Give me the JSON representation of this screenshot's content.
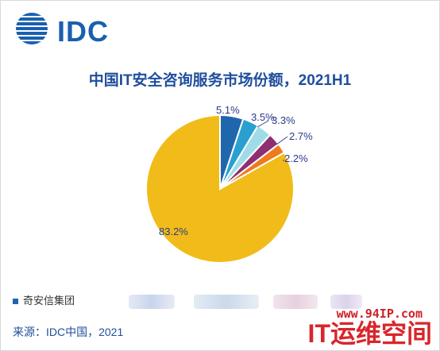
{
  "logo": {
    "text": "IDC"
  },
  "chart_data": {
    "type": "pie",
    "title": "中国IT安全咨询服务市场份额，2021H1",
    "slices": [
      {
        "label": "5.1%",
        "value": 5.1,
        "color": "#2066ad"
      },
      {
        "label": "3.5%",
        "value": 3.5,
        "color": "#2aa0d0"
      },
      {
        "label": "3.3%",
        "value": 3.3,
        "color": "#9fdce8"
      },
      {
        "label": "2.7%",
        "value": 2.7,
        "color": "#8e2e73"
      },
      {
        "label": "2.2%",
        "value": 2.2,
        "color": "#ee7b1e"
      },
      {
        "label": "83.2%",
        "value": 83.2,
        "color": "#f1bc19"
      }
    ]
  },
  "legend": {
    "first_label": "奇安信集团",
    "first_color": "#2066ad"
  },
  "source": "来源：IDC中国，2021",
  "watermark": {
    "url": "www.94IP.com",
    "brand": "IT运维空间"
  }
}
